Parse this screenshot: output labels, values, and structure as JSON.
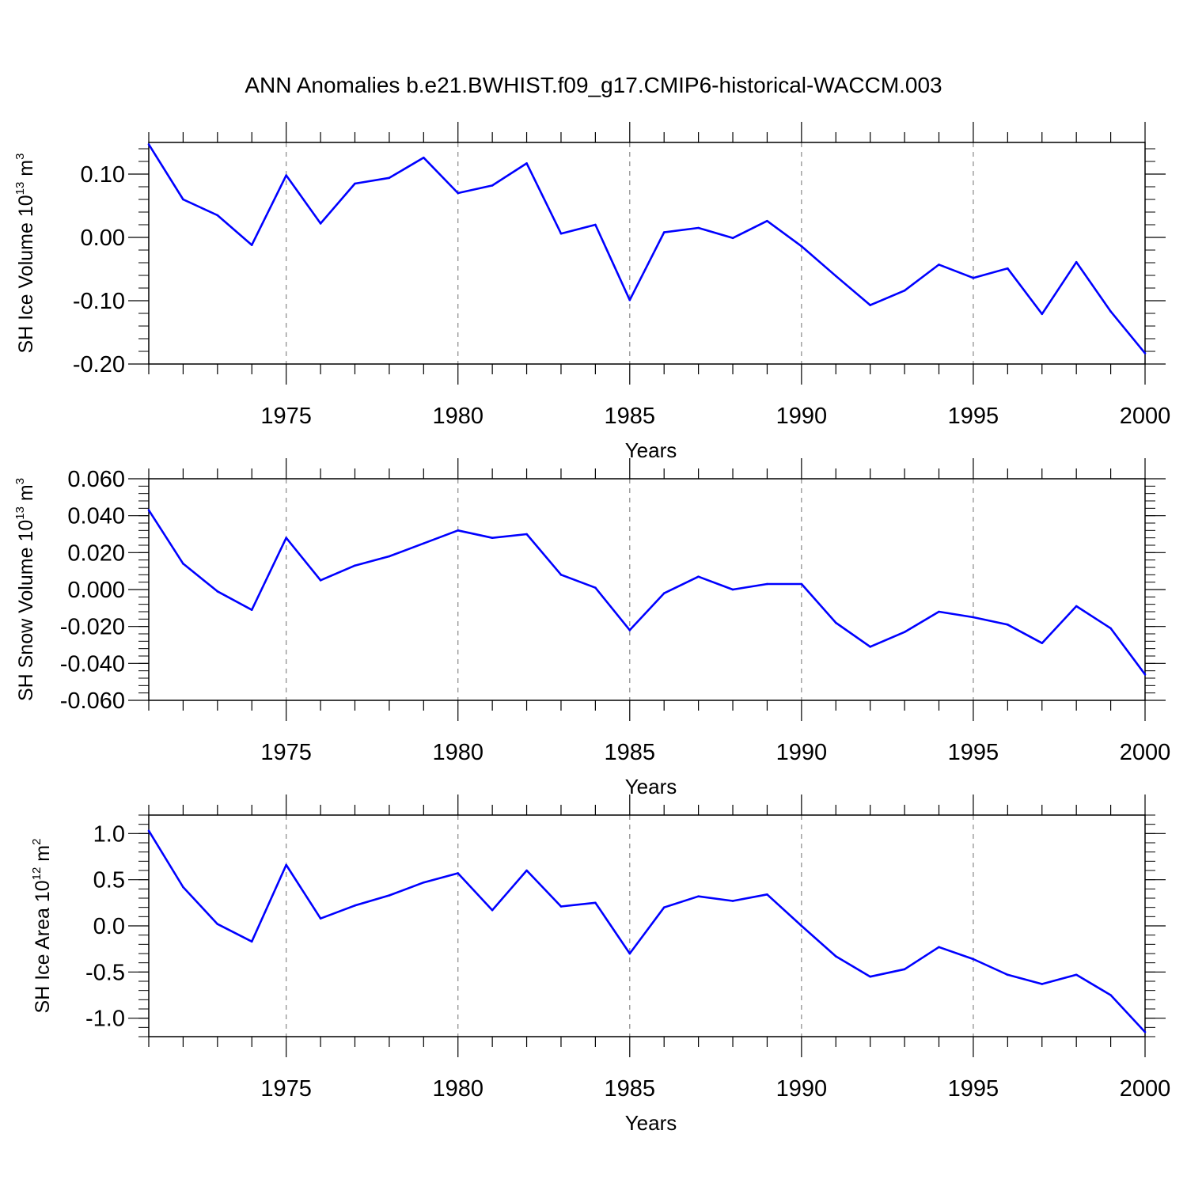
{
  "title": "ANN Anomalies b.e21.BWHIST.f09_g17.CMIP6-historical-WACCM.003",
  "colors": {
    "line": "#0000ff",
    "axis": "#000000",
    "grid": "#888888"
  },
  "chart_data": [
    {
      "type": "line",
      "ylabel": {
        "main": "SH Ice Volume 10",
        "exp": "13",
        "mid": " m",
        "unit_exp": "3"
      },
      "xlabel": "Years",
      "xlim": [
        1971,
        2000
      ],
      "ylim": [
        -0.2,
        0.15
      ],
      "yticks": [
        -0.2,
        -0.1,
        0.0,
        0.1
      ],
      "ytick_labels": [
        "-0.20",
        "-0.10",
        "0.00",
        "0.10"
      ],
      "xticks": [
        1975,
        1980,
        1985,
        1990,
        1995,
        2000
      ],
      "xtick_labels": [
        "1975",
        "1980",
        "1985",
        "1990",
        "1995",
        "2000"
      ],
      "grid": "vertical dashed at major x ticks",
      "x": [
        1971,
        1972,
        1973,
        1974,
        1975,
        1976,
        1977,
        1978,
        1979,
        1980,
        1981,
        1982,
        1983,
        1984,
        1985,
        1986,
        1987,
        1988,
        1989,
        1990,
        1991,
        1992,
        1993,
        1994,
        1995,
        1996,
        1997,
        1998,
        1999,
        2000
      ],
      "values": [
        0.147,
        0.06,
        0.035,
        -0.012,
        0.098,
        0.022,
        0.085,
        0.094,
        0.126,
        0.07,
        0.082,
        0.117,
        0.006,
        0.02,
        -0.099,
        0.008,
        0.015,
        -0.001,
        0.026,
        -0.014,
        -0.061,
        -0.107,
        -0.084,
        -0.043,
        -0.064,
        -0.049,
        -0.121,
        -0.039,
        -0.117,
        -0.183
      ]
    },
    {
      "type": "line",
      "ylabel": {
        "main": "SH Snow Volume 10",
        "exp": "13",
        "mid": " m",
        "unit_exp": "3"
      },
      "xlabel": "Years",
      "xlim": [
        1971,
        2000
      ],
      "ylim": [
        -0.06,
        0.06
      ],
      "yticks": [
        -0.06,
        -0.04,
        -0.02,
        0.0,
        0.02,
        0.04,
        0.06
      ],
      "ytick_labels": [
        "-0.060",
        "-0.040",
        "-0.020",
        "0.000",
        "0.020",
        "0.040",
        "0.060"
      ],
      "xticks": [
        1975,
        1980,
        1985,
        1990,
        1995,
        2000
      ],
      "xtick_labels": [
        "1975",
        "1980",
        "1985",
        "1990",
        "1995",
        "2000"
      ],
      "grid": "vertical dashed at major x ticks",
      "x": [
        1971,
        1972,
        1973,
        1974,
        1975,
        1976,
        1977,
        1978,
        1979,
        1980,
        1981,
        1982,
        1983,
        1984,
        1985,
        1986,
        1987,
        1988,
        1989,
        1990,
        1991,
        1992,
        1993,
        1994,
        1995,
        1996,
        1997,
        1998,
        1999,
        2000
      ],
      "values": [
        0.043,
        0.014,
        -0.001,
        -0.011,
        0.028,
        0.005,
        0.013,
        0.018,
        0.025,
        0.032,
        0.028,
        0.03,
        0.008,
        0.001,
        -0.022,
        -0.002,
        0.007,
        0.0,
        0.003,
        0.003,
        -0.018,
        -0.031,
        -0.023,
        -0.012,
        -0.015,
        -0.019,
        -0.029,
        -0.009,
        -0.021,
        -0.046
      ]
    },
    {
      "type": "line",
      "ylabel": {
        "main": "SH Ice Area 10",
        "exp": "12",
        "mid": " m",
        "unit_exp": "2"
      },
      "xlabel": "Years",
      "xlim": [
        1971,
        2000
      ],
      "ylim": [
        -1.2,
        1.2
      ],
      "yticks": [
        -1.0,
        -0.5,
        0.0,
        0.5,
        1.0
      ],
      "ytick_labels": [
        "-1.0",
        "-0.5",
        "0.0",
        "0.5",
        "1.0"
      ],
      "xticks": [
        1975,
        1980,
        1985,
        1990,
        1995,
        2000
      ],
      "xtick_labels": [
        "1975",
        "1980",
        "1985",
        "1990",
        "1995",
        "2000"
      ],
      "grid": "vertical dashed at major x ticks",
      "x": [
        1971,
        1972,
        1973,
        1974,
        1975,
        1976,
        1977,
        1978,
        1979,
        1980,
        1981,
        1982,
        1983,
        1984,
        1985,
        1986,
        1987,
        1988,
        1989,
        1990,
        1991,
        1992,
        1993,
        1994,
        1995,
        1996,
        1997,
        1998,
        1999,
        2000
      ],
      "values": [
        1.03,
        0.42,
        0.02,
        -0.17,
        0.66,
        0.08,
        0.22,
        0.33,
        0.47,
        0.57,
        0.17,
        0.6,
        0.21,
        0.25,
        -0.3,
        0.2,
        0.32,
        0.27,
        0.34,
        0.0,
        -0.33,
        -0.55,
        -0.47,
        -0.23,
        -0.36,
        -0.53,
        -0.63,
        -0.53,
        -0.75,
        -1.15
      ]
    }
  ]
}
